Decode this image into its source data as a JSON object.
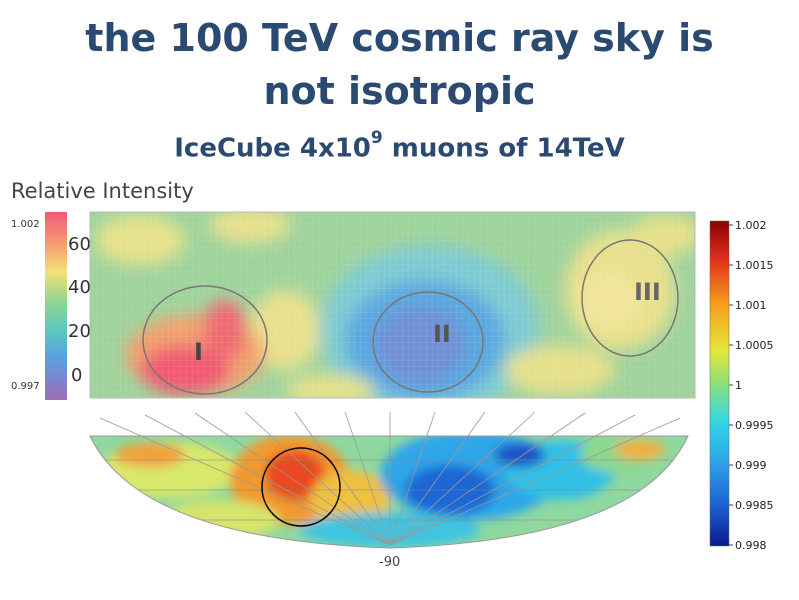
{
  "title_line1": "the 100 TeV cosmic ray sky is",
  "title_line2": "not isotropic",
  "subtitle_pre": "IceCube 4x10",
  "subtitle_exp": "9",
  "subtitle_post": " muons of 14TeV",
  "relative_intensity_label": "Relative Intensity",
  "left_scale": {
    "top_label": "1.002",
    "bottom_label": "0.997",
    "ticks": [
      "60",
      "40",
      "20",
      "0"
    ]
  },
  "regions": [
    "I",
    "II",
    "III"
  ],
  "right_colorbar": {
    "ticks": [
      "1.002",
      "1.0015",
      "1.001",
      "1.0005",
      "1",
      "0.9995",
      "0.999",
      "0.9985",
      "0.998"
    ]
  },
  "skymap_bottom_label": "-90",
  "colors": {
    "title": "#2b4a72",
    "map_base": "#9fd39c",
    "cold_region": "#5aa7e0",
    "hot_region": "#f0556a"
  }
}
